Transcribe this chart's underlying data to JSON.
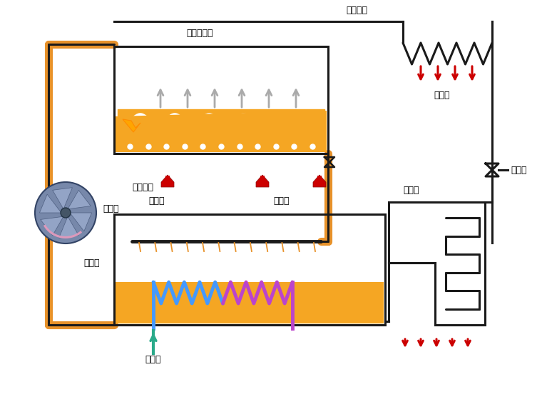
{
  "bg_color": "#ffffff",
  "orange": "#F5A623",
  "dark_orange": "#E8922A",
  "pipe_color": "#1a1a1a",
  "outer_pipe_color": "#E8922A",
  "red": "#CC0000",
  "teal": "#2AAA8A",
  "blue": "#4499FF",
  "purple": "#BB44CC",
  "gray_arrow": "#AAAAAA",
  "labels": {
    "steam_gen": "蒸汽发生器",
    "absorber": "吸收器",
    "condenser": "冷凝器",
    "evaporator": "蒸发器",
    "expansion": "节流阀",
    "pump": "循环泵",
    "heating": "加热过程",
    "concentrated": "浓溶液",
    "dilute": "稀溶液",
    "coolant": "冷却水",
    "refrigerant": "制冷工质"
  }
}
